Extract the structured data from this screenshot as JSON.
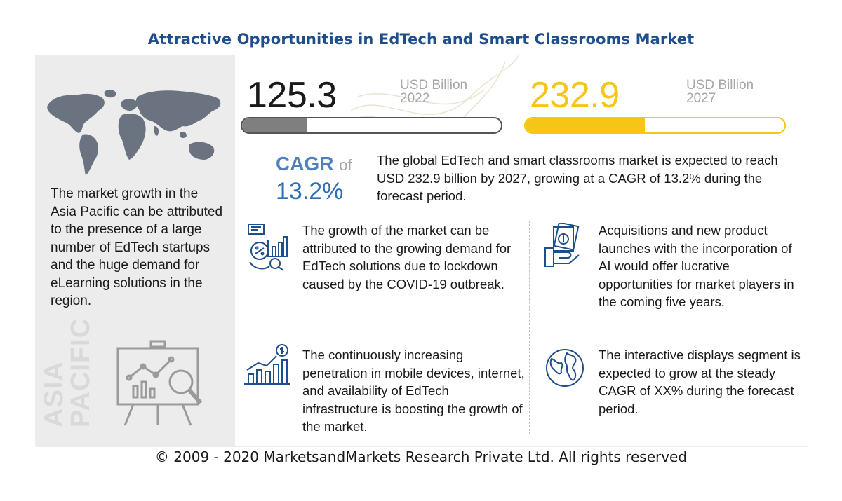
{
  "title": "Attractive Opportunities in EdTech and Smart Classrooms Market",
  "left_panel": {
    "description": "The market growth in the Asia Pacific can be attributed to the presence of a large number of EdTech startups and the huge demand for eLearning solutions in the region.",
    "region_line1": "ASIA",
    "region_line2": "PACIFIC",
    "icons": [
      "world-map-icon",
      "presentation-board-icon"
    ]
  },
  "stats": {
    "value_2022": "125.3",
    "unit_2022": "USD Billion",
    "year_2022": "2022",
    "value_2027": "232.9",
    "unit_2027": "USD Billion",
    "year_2027": "2027",
    "bar_2022_fill": 0.25,
    "bar_2027_fill": 0.46,
    "colors": {
      "bar_2022": "#7f7f7f",
      "bar_2027": "#f5c518",
      "value_2027": "#f5c518",
      "cagr": "#4f81bd"
    }
  },
  "cagr": {
    "label": "CAGR",
    "of": "of",
    "value": "13.2%",
    "summary": "The global EdTech and smart classrooms market is expected to reach USD 232.9 billion by 2027, growing at a CAGR of 13.2% during the forecast period."
  },
  "cards": [
    {
      "icon": "analytics-chart-icon",
      "text": "The growth of the market can be attributed to the growing demand for EdTech solutions due to lockdown caused by the COVID-19 outbreak."
    },
    {
      "icon": "money-hand-icon",
      "text": "Acquisitions and new product launches with the incorporation of AI would offer lucrative opportunities for market players in the coming five years."
    },
    {
      "icon": "growth-bar-chart-icon",
      "text": "The continuously increasing penetration in mobile devices, internet, and availability of EdTech infrastructure is boosting the growth of the market."
    },
    {
      "icon": "globe-icon",
      "text": "The interactive displays segment is expected to grow at the steady CAGR of XX% during the forecast period."
    }
  ],
  "footer": "© 2009 - 2020 MarketsandMarkets Research Private Ltd. All rights reserved"
}
